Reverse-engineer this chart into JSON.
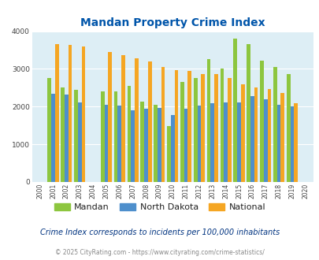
{
  "title": "Mandan Property Crime Index",
  "years": [
    2000,
    2001,
    2002,
    2003,
    2004,
    2005,
    2006,
    2007,
    2008,
    2009,
    2010,
    2011,
    2012,
    2013,
    2014,
    2015,
    2016,
    2017,
    2018,
    2019,
    2020
  ],
  "mandan": [
    0,
    2750,
    2500,
    2450,
    0,
    2400,
    2400,
    2550,
    2130,
    2050,
    1480,
    2650,
    2750,
    3250,
    3010,
    3810,
    3650,
    3210,
    3050,
    2870,
    0
  ],
  "north_dakota": [
    0,
    2340,
    2320,
    2110,
    0,
    2040,
    2030,
    1900,
    1950,
    1960,
    1770,
    1950,
    2030,
    2090,
    2110,
    2110,
    2280,
    2190,
    2050,
    2000,
    0
  ],
  "national": [
    0,
    3650,
    3630,
    3590,
    0,
    3440,
    3360,
    3280,
    3200,
    3050,
    2960,
    2940,
    2870,
    2860,
    2750,
    2590,
    2500,
    2460,
    2360,
    2100,
    0
  ],
  "mandan_color": "#8dc63f",
  "nd_color": "#4e8fcc",
  "national_color": "#f5a623",
  "bg_color": "#ddeef5",
  "title_color": "#0055aa",
  "ylim": [
    0,
    4000
  ],
  "yticks": [
    0,
    1000,
    2000,
    3000,
    4000
  ],
  "subtitle": "Crime Index corresponds to incidents per 100,000 inhabitants",
  "copyright": "© 2025 CityRating.com - https://www.cityrating.com/crime-statistics/",
  "legend_labels": [
    "Mandan",
    "North Dakota",
    "National"
  ],
  "bar_width": 0.28
}
